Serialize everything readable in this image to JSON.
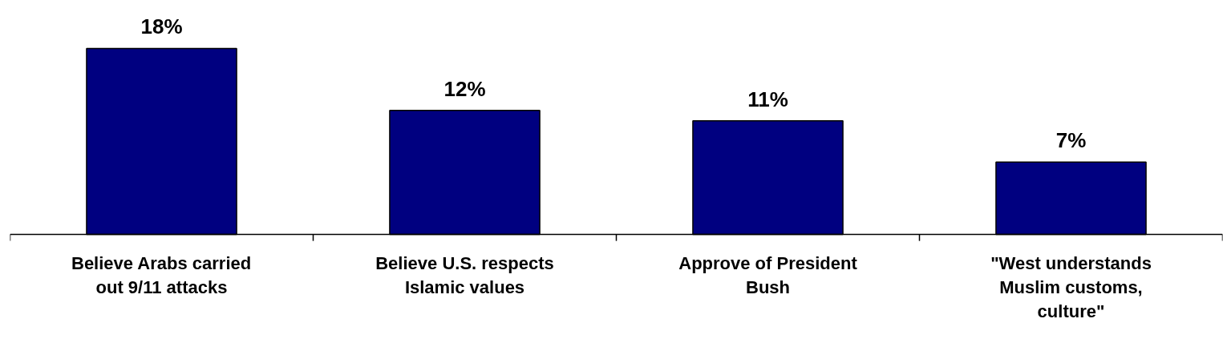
{
  "chart_data": {
    "type": "bar",
    "categories": [
      "Believe Arabs carried out 9/11 attacks",
      "Believe U.S. respects Islamic values",
      "Approve of President Bush",
      "\"West understands Muslim customs, culture\""
    ],
    "values": [
      18,
      12,
      11,
      7
    ],
    "value_labels": [
      "18%",
      "12%",
      "11%",
      "7%"
    ],
    "color": "#000080",
    "grid": false
  }
}
